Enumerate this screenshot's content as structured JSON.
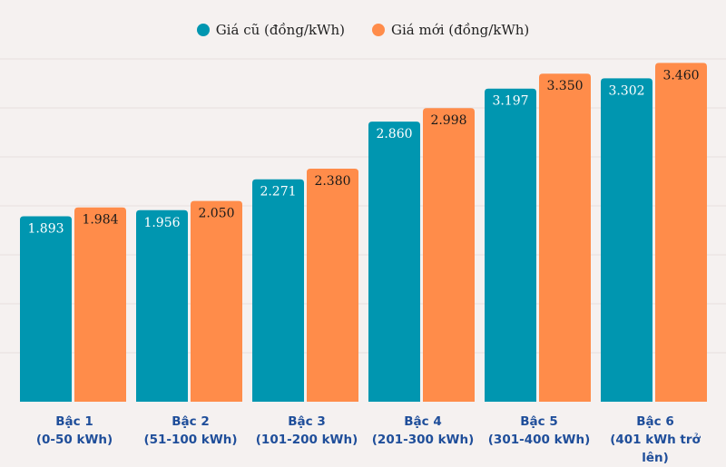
{
  "chart_data": {
    "type": "bar",
    "categories": [
      {
        "name": "Bậc 1",
        "range": "(0-50 kWh)"
      },
      {
        "name": "Bậc 2",
        "range": "(51-100 kWh)"
      },
      {
        "name": "Bậc 3",
        "range": "(101-200 kWh)"
      },
      {
        "name": "Bậc 4",
        "range": "(201-300 kWh)"
      },
      {
        "name": "Bậc 5",
        "range": "(301-400 kWh)"
      },
      {
        "name": "Bậc 6",
        "range": "(401 kWh trở lên)"
      }
    ],
    "series": [
      {
        "name": "Giá cũ (đồng/kWh)",
        "color": "#0096b0",
        "label_color": "#ffffff",
        "values": [
          1893,
          1956,
          2271,
          2860,
          3197,
          3302
        ],
        "labels": [
          "1.893",
          "1.956",
          "2.271",
          "2.860",
          "3.197",
          "3.302"
        ]
      },
      {
        "name": "Giá mới (đồng/kWh)",
        "color": "#ff8c4a",
        "label_color": "#1a1a1a",
        "values": [
          1984,
          2050,
          2380,
          2998,
          3350,
          3460
        ],
        "labels": [
          "1.984",
          "2.050",
          "2.380",
          "2.998",
          "3.350",
          "3.460"
        ]
      }
    ],
    "ylim": [
      0,
      3500
    ],
    "grid_step": 500,
    "grid": true,
    "legend_placement": "top-center",
    "xlabel": "",
    "ylabel": ""
  }
}
